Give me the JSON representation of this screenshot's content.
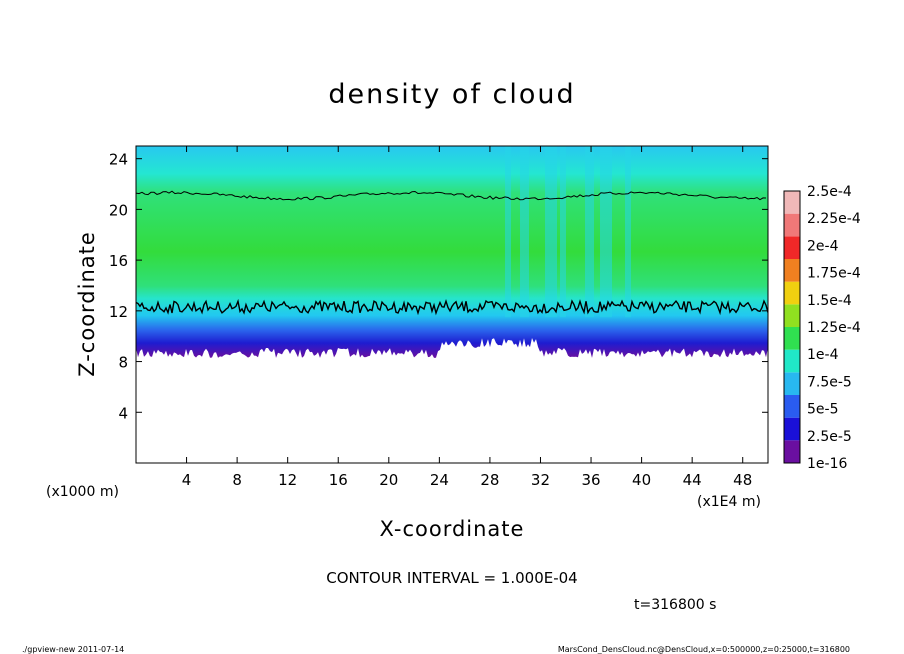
{
  "chart_data": {
    "type": "heatmap",
    "title": "density of cloud",
    "xlabel": "X-coordinate",
    "ylabel": "Z-coordinate",
    "xlim": [
      0,
      50
    ],
    "ylim": [
      0,
      25
    ],
    "x_ticks": [
      4,
      8,
      12,
      16,
      20,
      24,
      28,
      32,
      36,
      40,
      44,
      48
    ],
    "x_tick_labels": [
      "4",
      "8",
      "12",
      "16",
      "20",
      "24",
      "28",
      "32",
      "36",
      "40",
      "44",
      "48"
    ],
    "y_ticks": [
      4,
      8,
      12,
      16,
      20,
      24
    ],
    "y_tick_labels": [
      "4",
      "8",
      "12",
      "16",
      "20",
      "24"
    ],
    "x_unit": "(x1E4 m)",
    "y_unit": "(x1000 m)",
    "contour_interval_text": "CONTOUR INTERVAL = 1.000E-04",
    "time_text": "t=316800 s",
    "cloud_base_z": 8.6,
    "cloud_top_z": 25,
    "colorbar": {
      "labels": [
        "1e-16",
        "2.5e-5",
        "5e-5",
        "7.5e-5",
        "1e-4",
        "1.25e-4",
        "1.5e-4",
        "1.75e-4",
        "2e-4",
        "2.25e-4",
        "2.5e-4"
      ],
      "colors": [
        "#6a0fa0",
        "#1a10d8",
        "#2a5cf0",
        "#28b8f0",
        "#20e8c8",
        "#30e050",
        "#90e020",
        "#f0d010",
        "#f08020",
        "#f02828",
        "#f07878",
        "#f0b8b8"
      ]
    }
  },
  "footer": {
    "left": "./gpview-new  2011-07-14",
    "right": "MarsCond_DensCloud.nc@DensCloud,x=0:500000,z=0:25000,t=316800"
  }
}
